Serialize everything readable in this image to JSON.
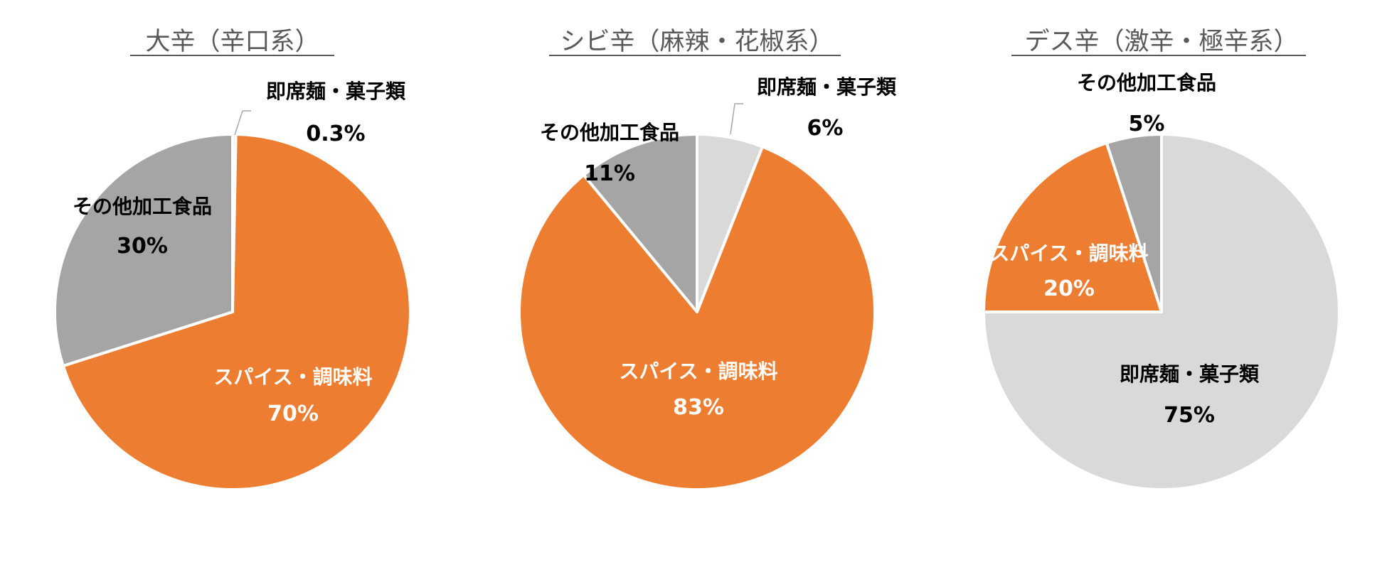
{
  "chart_data": [
    {
      "type": "pie",
      "title": "大辛（辛口系）",
      "slices": [
        {
          "label": "即席麺・菓子類",
          "value": 0.3,
          "display": "0.3%",
          "color": "#D9D9D9"
        },
        {
          "label": "スパイス・調味料",
          "value": 70,
          "display": "70%",
          "color": "#ED7D31"
        },
        {
          "label": "その他加工食品",
          "value": 30,
          "display": "30%",
          "color": "#A5A5A5"
        }
      ]
    },
    {
      "type": "pie",
      "title": "シビ辛（麻辣・花椒系）",
      "slices": [
        {
          "label": "即席麺・菓子類",
          "value": 6,
          "display": "6%",
          "color": "#D9D9D9"
        },
        {
          "label": "スパイス・調味料",
          "value": 83,
          "display": "83%",
          "color": "#ED7D31"
        },
        {
          "label": "その他加工食品",
          "value": 11,
          "display": "11%",
          "color": "#A5A5A5"
        }
      ]
    },
    {
      "type": "pie",
      "title": "デス辛（激辛・極辛系）",
      "slices": [
        {
          "label": "即席麺・菓子類",
          "value": 75,
          "display": "75%",
          "color": "#D9D9D9"
        },
        {
          "label": "スパイス・調味料",
          "value": 20,
          "display": "20%",
          "color": "#ED7D31"
        },
        {
          "label": "その他加工食品",
          "value": 5,
          "display": "5%",
          "color": "#A5A5A5"
        }
      ]
    }
  ]
}
